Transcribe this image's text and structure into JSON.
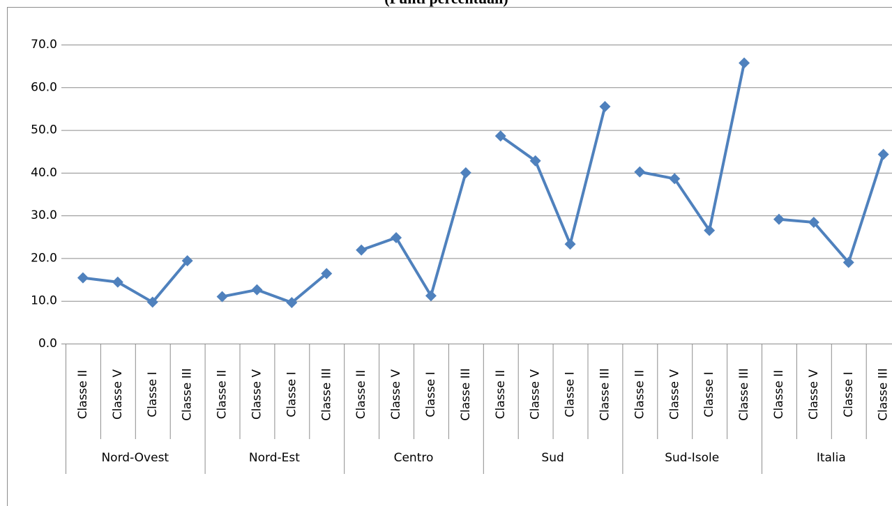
{
  "chart_data": {
    "type": "line",
    "title": "(Punti percentuali)",
    "color": "#4f81bd",
    "groups": [
      {
        "name": "Nord-Ovest",
        "categories": [
          "Classe II",
          "Classe V",
          "Classe I",
          "Classe III"
        ],
        "values": [
          15.4,
          14.4,
          9.7,
          19.4
        ]
      },
      {
        "name": "Nord-Est",
        "categories": [
          "Classe II",
          "Classe V",
          "Classe I",
          "Classe III"
        ],
        "values": [
          11.0,
          12.6,
          9.6,
          16.4
        ]
      },
      {
        "name": "Centro",
        "categories": [
          "Classe II",
          "Classe V",
          "Classe I",
          "Classe III"
        ],
        "values": [
          21.9,
          24.8,
          11.2,
          40.0
        ]
      },
      {
        "name": "Sud",
        "categories": [
          "Classe II",
          "Classe V",
          "Classe I",
          "Classe III"
        ],
        "values": [
          48.6,
          42.8,
          23.3,
          55.5
        ]
      },
      {
        "name": "Sud-Isole",
        "categories": [
          "Classe II",
          "Classe V",
          "Classe I",
          "Classe III"
        ],
        "values": [
          40.2,
          38.6,
          26.5,
          65.7
        ]
      },
      {
        "name": "Italia",
        "categories": [
          "Classe II",
          "Classe V",
          "Classe I",
          "Classe III"
        ],
        "values": [
          29.1,
          28.4,
          19.0,
          44.3
        ]
      }
    ],
    "ylim": [
      0,
      70
    ],
    "yticks": [
      {
        "value": 0,
        "label": "0.0"
      },
      {
        "value": 10,
        "label": "10.0"
      },
      {
        "value": 20,
        "label": "20.0"
      },
      {
        "value": 30,
        "label": "30.0"
      },
      {
        "value": 40,
        "label": "40.0"
      },
      {
        "value": 50,
        "label": "50.0"
      },
      {
        "value": 60,
        "label": "60.0"
      },
      {
        "value": 70,
        "label": "70.0"
      }
    ],
    "grid": true
  }
}
